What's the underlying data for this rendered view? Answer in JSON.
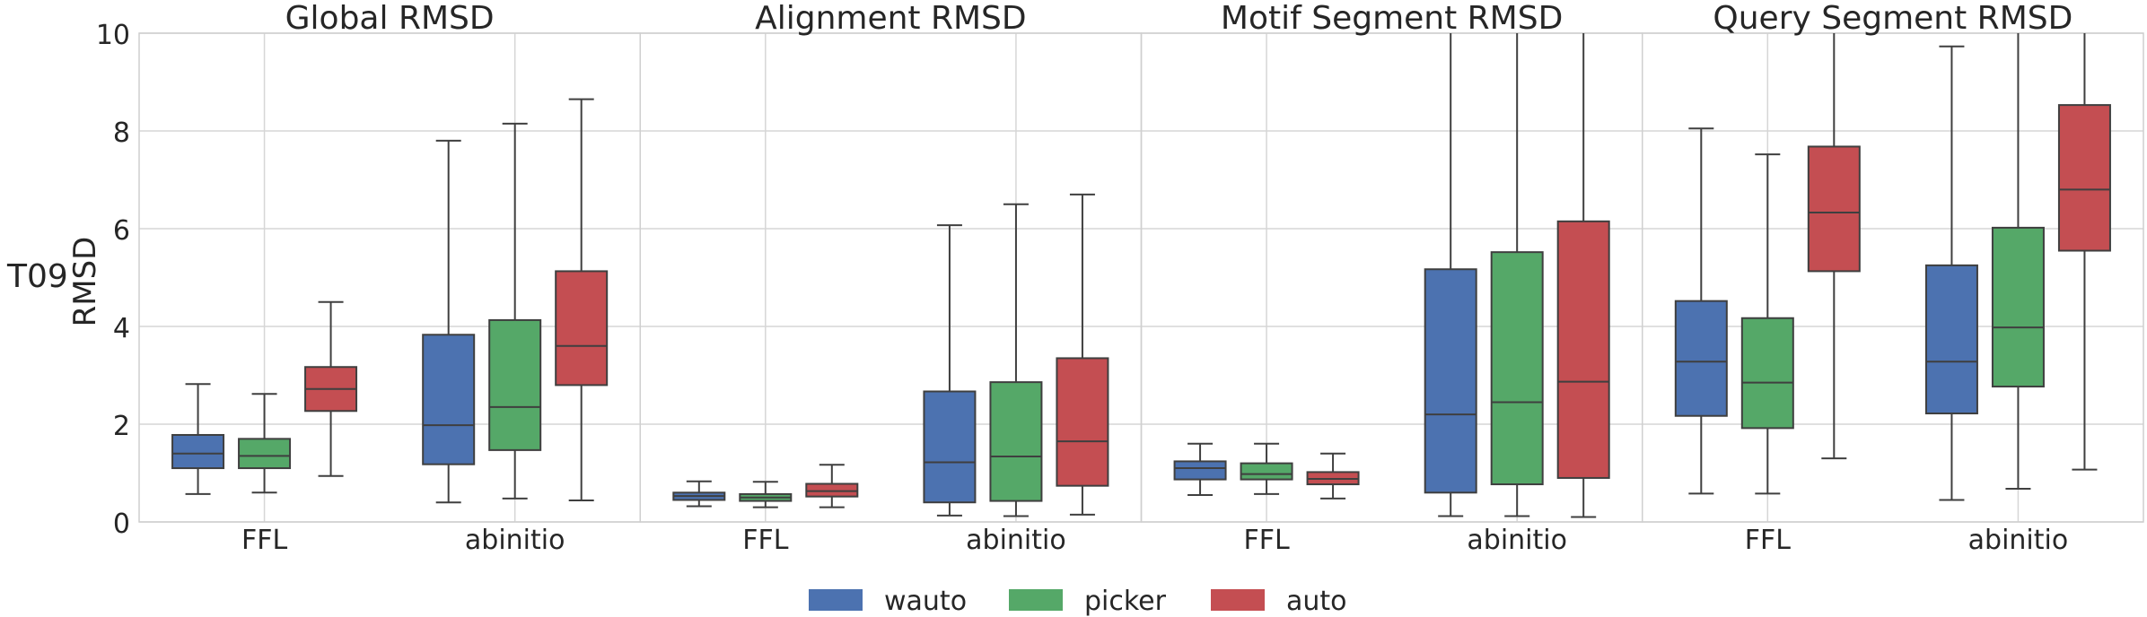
{
  "row_label": "T09",
  "chart_data": {
    "type": "box",
    "ylabel": "RMSD",
    "ylim": [
      0,
      10
    ],
    "yticks": [
      "0",
      "2",
      "4",
      "6",
      "8",
      "10"
    ],
    "categories": [
      "FFL",
      "abinitio"
    ],
    "legend": {
      "placement": "bottom-center"
    },
    "series": [
      {
        "name": "wauto",
        "color": "#4c72b0"
      },
      {
        "name": "picker",
        "color": "#55a868"
      },
      {
        "name": "auto",
        "color": "#c44e52"
      }
    ],
    "panels": [
      {
        "title": "Global RMSD",
        "boxes": [
          [
            {
              "whislo": 0.57,
              "q1": 1.1,
              "med": 1.4,
              "q3": 1.78,
              "whishi": 2.82
            },
            {
              "whislo": 0.6,
              "q1": 1.1,
              "med": 1.35,
              "q3": 1.7,
              "whishi": 2.62
            },
            {
              "whislo": 0.94,
              "q1": 2.27,
              "med": 2.72,
              "q3": 3.17,
              "whishi": 4.5
            }
          ],
          [
            {
              "whislo": 0.4,
              "q1": 1.18,
              "med": 1.98,
              "q3": 3.83,
              "whishi": 7.8
            },
            {
              "whislo": 0.48,
              "q1": 1.47,
              "med": 2.35,
              "q3": 4.13,
              "whishi": 8.15
            },
            {
              "whislo": 0.44,
              "q1": 2.8,
              "med": 3.6,
              "q3": 5.13,
              "whishi": 8.65
            }
          ]
        ]
      },
      {
        "title": "Alignment RMSD",
        "boxes": [
          [
            {
              "whislo": 0.32,
              "q1": 0.45,
              "med": 0.53,
              "q3": 0.6,
              "whishi": 0.83
            },
            {
              "whislo": 0.3,
              "q1": 0.43,
              "med": 0.5,
              "q3": 0.57,
              "whishi": 0.82
            },
            {
              "whislo": 0.3,
              "q1": 0.52,
              "med": 0.63,
              "q3": 0.78,
              "whishi": 1.17
            }
          ],
          [
            {
              "whislo": 0.13,
              "q1": 0.4,
              "med": 1.22,
              "q3": 2.67,
              "whishi": 6.07
            },
            {
              "whislo": 0.12,
              "q1": 0.43,
              "med": 1.34,
              "q3": 2.86,
              "whishi": 6.5
            },
            {
              "whislo": 0.15,
              "q1": 0.74,
              "med": 1.65,
              "q3": 3.35,
              "whishi": 6.7
            }
          ]
        ]
      },
      {
        "title": "Motif Segment RMSD",
        "boxes": [
          [
            {
              "whislo": 0.55,
              "q1": 0.87,
              "med": 1.1,
              "q3": 1.24,
              "whishi": 1.6
            },
            {
              "whislo": 0.57,
              "q1": 0.87,
              "med": 0.98,
              "q3": 1.2,
              "whishi": 1.6
            },
            {
              "whislo": 0.48,
              "q1": 0.77,
              "med": 0.88,
              "q3": 1.02,
              "whishi": 1.4
            }
          ],
          [
            {
              "whislo": 0.12,
              "q1": 0.6,
              "med": 2.2,
              "q3": 5.17,
              "whishi": 10.5
            },
            {
              "whislo": 0.12,
              "q1": 0.77,
              "med": 2.45,
              "q3": 5.52,
              "whishi": 10.5
            },
            {
              "whislo": 0.1,
              "q1": 0.9,
              "med": 2.87,
              "q3": 6.15,
              "whishi": 10.5
            }
          ]
        ]
      },
      {
        "title": "Query Segment RMSD",
        "boxes": [
          [
            {
              "whislo": 0.58,
              "q1": 2.17,
              "med": 3.28,
              "q3": 4.52,
              "whishi": 8.05
            },
            {
              "whislo": 0.58,
              "q1": 1.92,
              "med": 2.85,
              "q3": 4.17,
              "whishi": 7.52
            },
            {
              "whislo": 1.3,
              "q1": 5.13,
              "med": 6.33,
              "q3": 7.68,
              "whishi": 10.5
            }
          ],
          [
            {
              "whislo": 0.45,
              "q1": 2.22,
              "med": 3.28,
              "q3": 5.25,
              "whishi": 9.73
            },
            {
              "whislo": 0.68,
              "q1": 2.77,
              "med": 3.98,
              "q3": 6.02,
              "whishi": 10.5
            },
            {
              "whislo": 1.07,
              "q1": 5.55,
              "med": 6.8,
              "q3": 8.53,
              "whishi": 10.5
            }
          ]
        ]
      }
    ]
  }
}
